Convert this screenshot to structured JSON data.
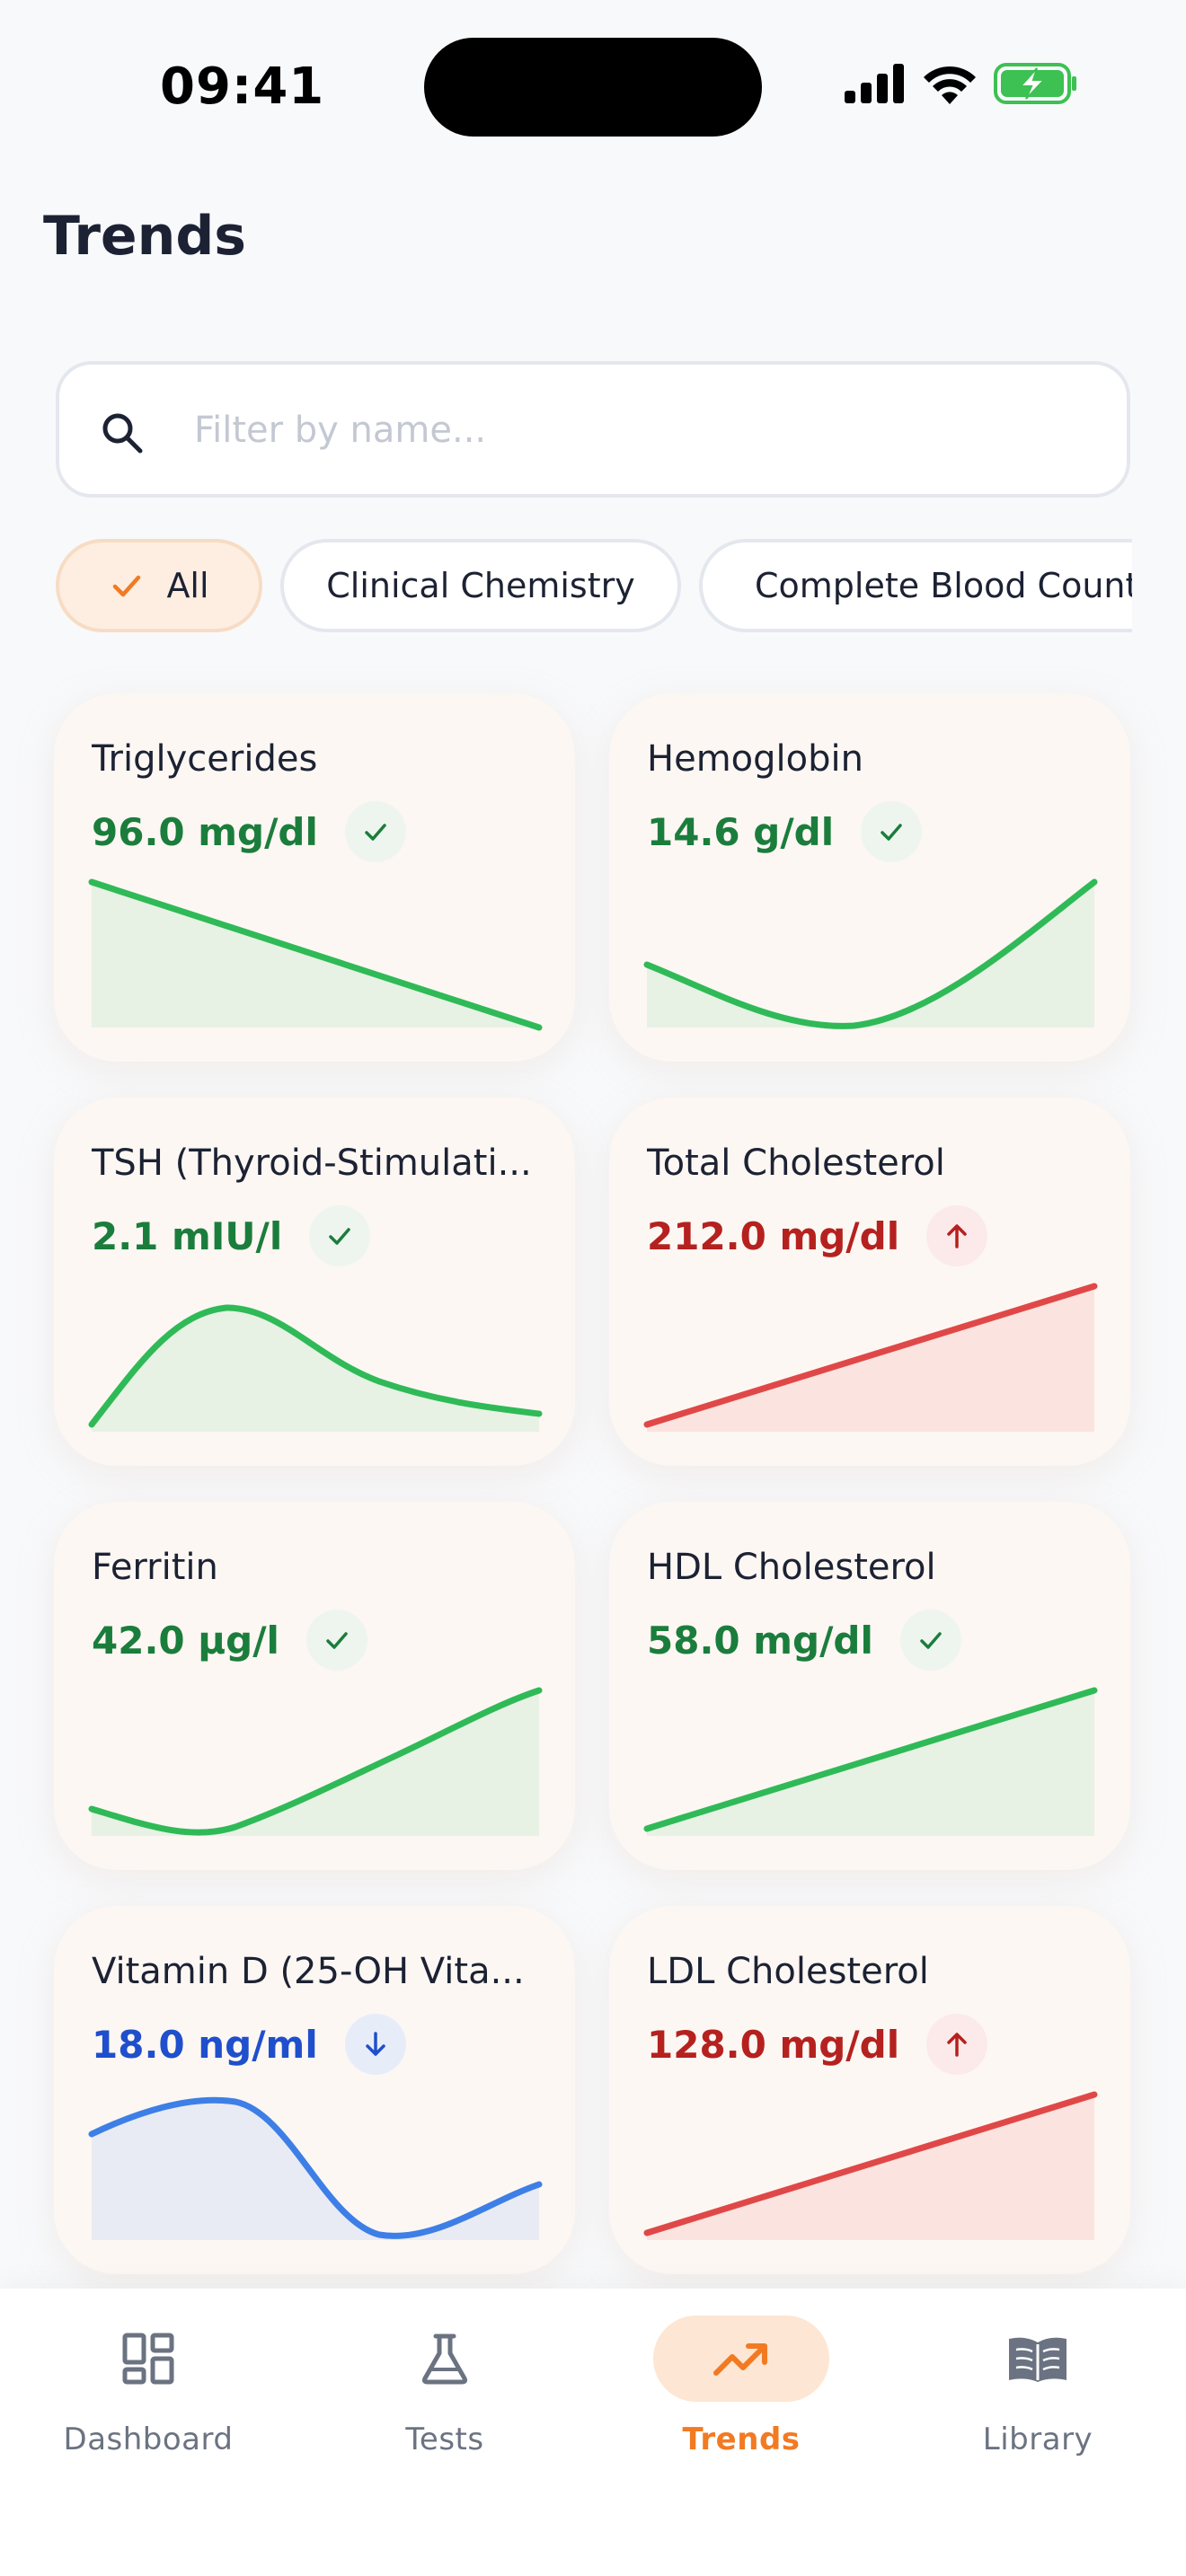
{
  "status_bar": {
    "time": "09:41"
  },
  "header": {
    "title": "Trends"
  },
  "search": {
    "placeholder": "Filter by name..."
  },
  "chips": [
    {
      "label": "All",
      "selected": true
    },
    {
      "label": "Clinical Chemistry",
      "selected": false
    },
    {
      "label": "Complete Blood Count",
      "selected": false
    }
  ],
  "colors": {
    "normal": "#1b7d3c",
    "normal_line": "#2fba57",
    "normal_fill": "#e7f1e4",
    "high": "#b5211f",
    "high_line": "#e04848",
    "high_fill": "#fbe3df",
    "low": "#1f4fcc",
    "low_line": "#3d7fe6",
    "low_fill": "#e9ebf4",
    "accent": "#f27a22"
  },
  "cards": [
    {
      "name": "Triglycerides",
      "value": "96.0 mg/dl",
      "status": "normal",
      "status_icon": "check-icon"
    },
    {
      "name": "Hemoglobin",
      "value": "14.6 g/dl",
      "status": "normal",
      "status_icon": "check-icon"
    },
    {
      "name": "TSH (Thyroid-Stimulati...",
      "value": "2.1 mIU/l",
      "status": "normal",
      "status_icon": "check-icon"
    },
    {
      "name": "Total Cholesterol",
      "value": "212.0 mg/dl",
      "status": "high",
      "status_icon": "arrow-up-icon"
    },
    {
      "name": "Ferritin",
      "value": "42.0 µg/l",
      "status": "normal",
      "status_icon": "check-icon"
    },
    {
      "name": "HDL Cholesterol",
      "value": "58.0 mg/dl",
      "status": "normal",
      "status_icon": "check-icon"
    },
    {
      "name": "Vitamin D (25-OH Vita...",
      "value": "18.0 ng/ml",
      "status": "low",
      "status_icon": "arrow-down-icon"
    },
    {
      "name": "LDL Cholesterol",
      "value": "128.0 mg/dl",
      "status": "high",
      "status_icon": "arrow-up-icon"
    }
  ],
  "bottom_nav": [
    {
      "label": "Dashboard",
      "icon": "dashboard-icon",
      "active": false
    },
    {
      "label": "Tests",
      "icon": "flask-icon",
      "active": false
    },
    {
      "label": "Trends",
      "icon": "trending-up-icon",
      "active": true
    },
    {
      "label": "Library",
      "icon": "book-icon",
      "active": false
    }
  ]
}
